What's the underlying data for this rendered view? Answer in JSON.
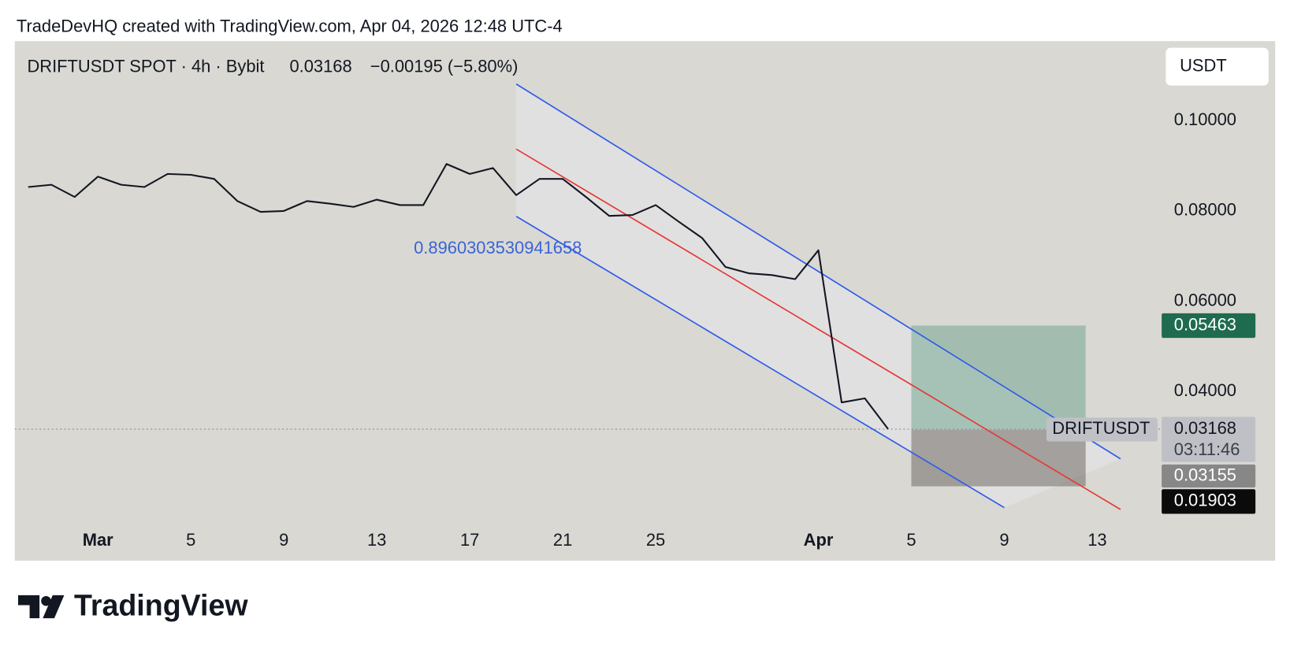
{
  "header": "TradeDevHQ created with TradingView.com, Apr 04, 2026 12:48 UTC-4",
  "brand": "TradingView",
  "chart_data": {
    "type": "line",
    "symbol": "DRIFTUSDT SPOT · 4h · Bybit",
    "last_price": 0.03168,
    "change": "−0.00195 (−5.80%)",
    "currency": "USDT",
    "symbol_label": "DRIFTUSDT",
    "countdown": "03:11:46",
    "annotation": "0.8960303530941658",
    "series": [
      {
        "color": "#131722",
        "x": [
          "2026-02-26",
          "2026-02-27",
          "2026-02-28",
          "2026-03-01",
          "2026-03-02",
          "2026-03-03",
          "2026-03-04",
          "2026-03-05",
          "2026-03-06",
          "2026-03-07",
          "2026-03-08",
          "2026-03-09",
          "2026-03-10",
          "2026-03-11",
          "2026-03-12",
          "2026-03-13",
          "2026-03-14",
          "2026-03-15",
          "2026-03-16",
          "2026-03-17",
          "2026-03-18",
          "2026-03-19",
          "2026-03-20",
          "2026-03-21",
          "2026-03-22",
          "2026-03-23",
          "2026-03-24",
          "2026-03-25",
          "2026-03-26",
          "2026-03-27",
          "2026-03-28",
          "2026-03-29",
          "2026-03-30",
          "2026-03-31",
          "2026-04-01",
          "2026-04-02",
          "2026-04-03",
          "2026-04-04"
        ],
        "values": [
          0.0853,
          0.0858,
          0.0831,
          0.0876,
          0.0858,
          0.0853,
          0.0882,
          0.088,
          0.0871,
          0.0822,
          0.0798,
          0.08,
          0.0822,
          0.0816,
          0.0809,
          0.0825,
          0.0813,
          0.0813,
          0.0904,
          0.0882,
          0.0895,
          0.0835,
          0.0871,
          0.0871,
          0.0831,
          0.0789,
          0.0791,
          0.0813,
          0.0776,
          0.074,
          0.0676,
          0.0662,
          0.0658,
          0.0649,
          0.0713,
          0.0376,
          0.0385,
          0.0317
        ]
      }
    ],
    "trend_lines": [
      {
        "color": "#2f5bea",
        "x": [
          "2026-03-19",
          "2026-04-14"
        ],
        "values": [
          0.1081,
          0.0251
        ]
      },
      {
        "color": "#e53935",
        "x": [
          "2026-03-19",
          "2026-04-14"
        ],
        "values": [
          0.0937,
          0.0139
        ]
      },
      {
        "color": "#2f5bea",
        "x": [
          "2026-03-19",
          "2026-04-09"
        ],
        "values": [
          0.0788,
          0.0143
        ]
      }
    ],
    "position": {
      "x": [
        "2026-04-05",
        "2026-04-12T12:00"
      ],
      "target": 0.05463,
      "entry": 0.03155,
      "stop": 0.01903
    },
    "ylim": [
      0.0102,
      0.1176
    ],
    "yticks": [
      {
        "value": 0.1,
        "label": "0.10000"
      },
      {
        "value": 0.08,
        "label": "0.08000"
      },
      {
        "value": 0.06,
        "label": "0.06000"
      },
      {
        "value": 0.04,
        "label": "0.04000"
      }
    ],
    "xticks": [
      {
        "value": "2026-03-01",
        "label": "Mar"
      },
      {
        "value": "2026-03-05",
        "label": "5"
      },
      {
        "value": "2026-03-09",
        "label": "9"
      },
      {
        "value": "2026-03-13",
        "label": "13"
      },
      {
        "value": "2026-03-17",
        "label": "17"
      },
      {
        "value": "2026-03-21",
        "label": "21"
      },
      {
        "value": "2026-03-25",
        "label": "25"
      },
      {
        "value": "2026-04-01",
        "label": "Apr"
      },
      {
        "value": "2026-04-05",
        "label": "5"
      },
      {
        "value": "2026-04-09",
        "label": "9"
      },
      {
        "value": "2026-04-13",
        "label": "13"
      }
    ]
  }
}
